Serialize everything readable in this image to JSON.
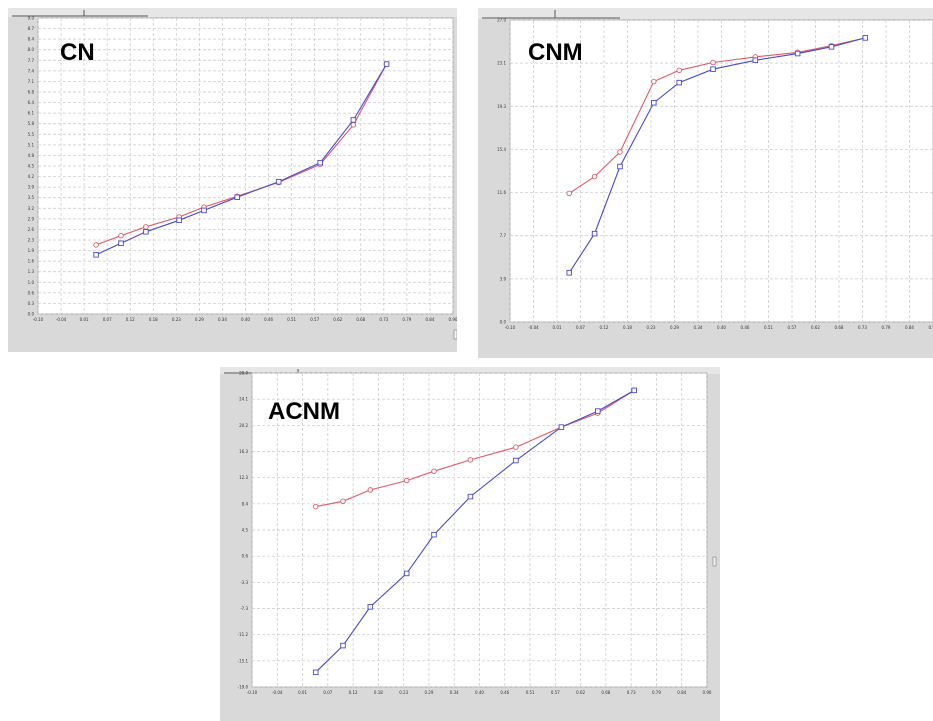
{
  "chart_data": [
    {
      "type": "line",
      "title": "CN",
      "x": [
        0.04,
        0.1,
        0.16,
        0.24,
        0.3,
        0.38,
        0.48,
        0.58,
        0.66,
        0.74
      ],
      "series": [
        {
          "color": "#e05a6a",
          "marker": "circle",
          "values": [
            2.1,
            2.38,
            2.65,
            2.95,
            3.25,
            3.58,
            4.0,
            4.55,
            5.75,
            7.6
          ]
        },
        {
          "color": "#4a4acc",
          "marker": "square",
          "values": [
            1.8,
            2.15,
            2.5,
            2.85,
            3.15,
            3.55,
            4.02,
            4.6,
            5.9,
            7.6
          ]
        }
      ],
      "xlim": [
        -0.1,
        0.9
      ],
      "ylim": [
        0,
        9
      ],
      "xlabel": "",
      "ylabel": "",
      "grid": true
    },
    {
      "type": "line",
      "title": "CNM",
      "x": [
        0.04,
        0.1,
        0.16,
        0.24,
        0.3,
        0.38,
        0.48,
        0.58,
        0.66,
        0.74
      ],
      "series": [
        {
          "color": "#e05a6a",
          "marker": "circle",
          "values": [
            11.5,
            13.0,
            15.2,
            21.5,
            22.5,
            23.2,
            23.7,
            24.1,
            24.7,
            25.4
          ]
        },
        {
          "color": "#4a4acc",
          "marker": "square",
          "values": [
            4.4,
            7.9,
            13.9,
            19.6,
            21.4,
            22.6,
            23.4,
            24.0,
            24.6,
            25.4
          ]
        }
      ],
      "xlim": [
        -0.1,
        0.9
      ],
      "ylim": [
        0,
        27
      ],
      "xlabel": "",
      "ylabel": "",
      "grid": true
    },
    {
      "type": "line",
      "title": "ACNM",
      "x": [
        0.04,
        0.1,
        0.16,
        0.24,
        0.3,
        0.38,
        0.48,
        0.58,
        0.66,
        0.74
      ],
      "series": [
        {
          "color": "#e05a6a",
          "marker": "circle",
          "values": [
            8.0,
            8.8,
            10.5,
            11.9,
            13.3,
            15.0,
            16.9,
            19.9,
            22.0,
            25.4
          ]
        },
        {
          "color": "#4a4acc",
          "marker": "square",
          "values": [
            -16.8,
            -12.8,
            -7.0,
            -2.0,
            3.8,
            9.5,
            14.9,
            19.9,
            22.3,
            25.4
          ]
        }
      ],
      "xlim": [
        -0.1,
        0.9
      ],
      "ylim": [
        -19,
        28
      ],
      "xlabel": "",
      "ylabel": "",
      "grid": true
    }
  ]
}
